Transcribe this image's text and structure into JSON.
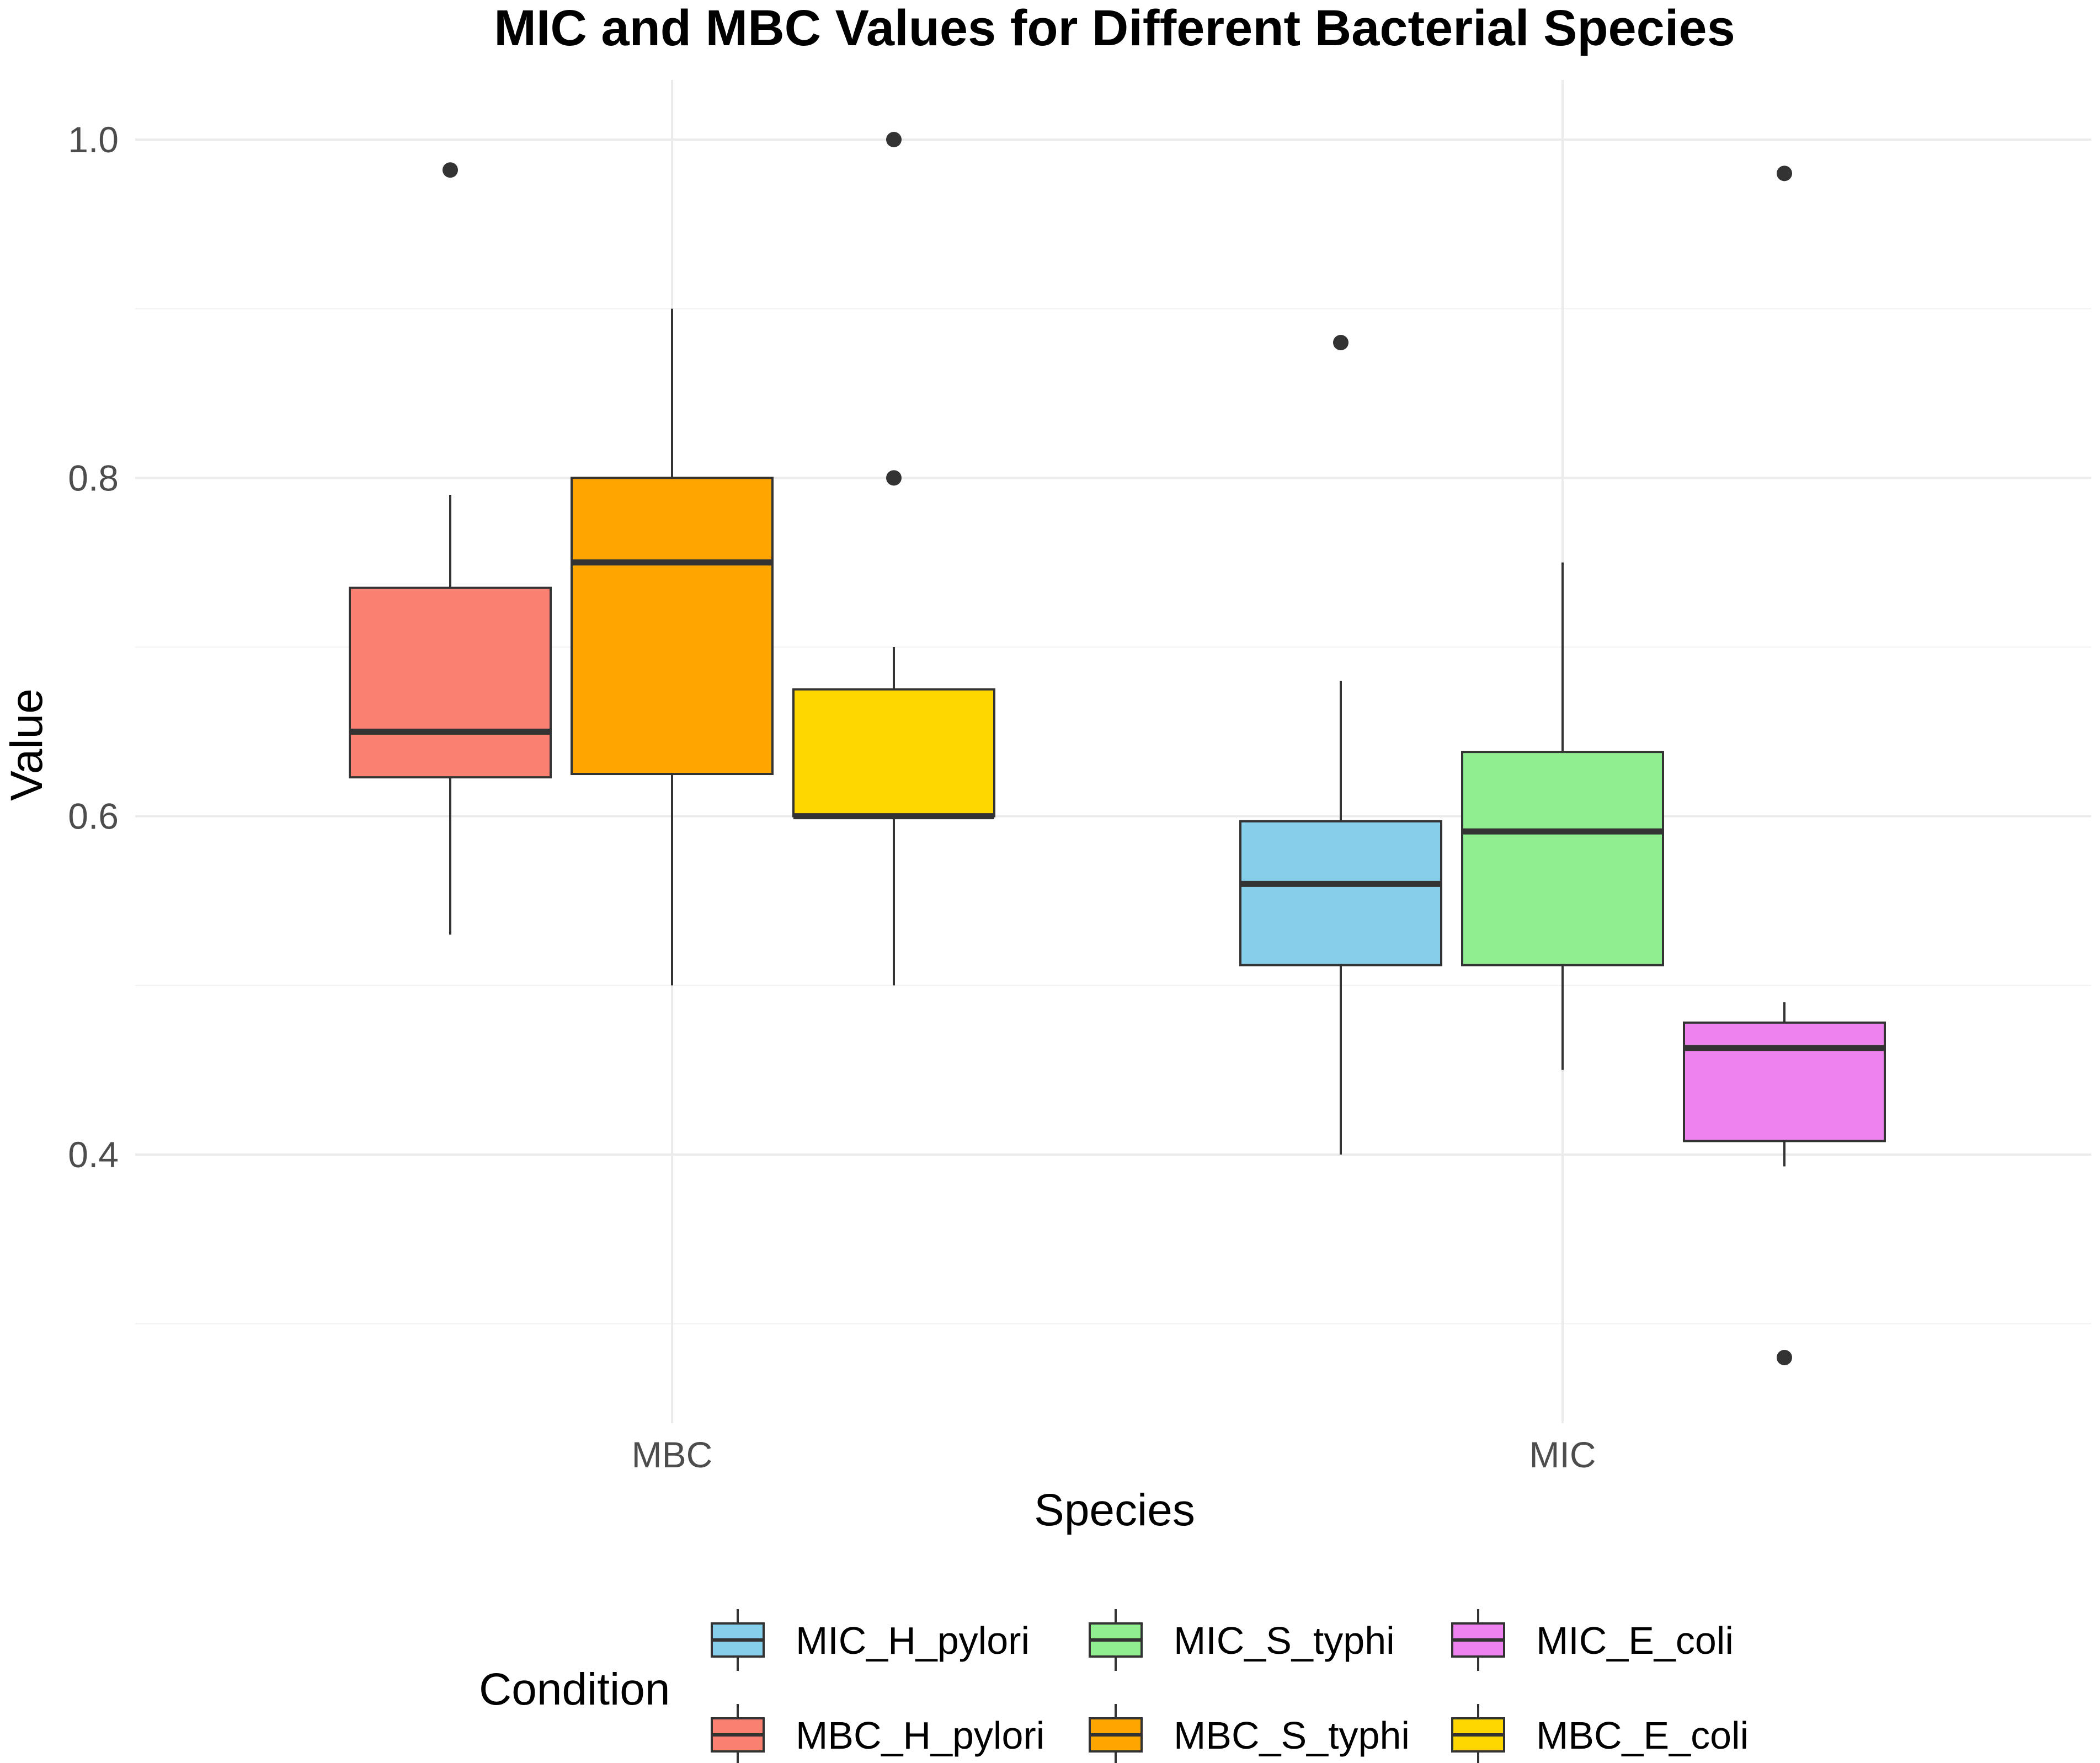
{
  "chart_data": {
    "type": "boxplot",
    "title": "MIC and MBC Values for Different Bacterial Species",
    "xlabel": "Species",
    "ylabel": "Value",
    "ylim": [
      0.25,
      1.05
    ],
    "y_ticks": [
      0.4,
      0.6,
      0.8,
      1.0
    ],
    "y_tick_labels": [
      "0.4",
      "0.6",
      "0.8",
      "1.0"
    ],
    "categories": [
      "MBC",
      "MIC"
    ],
    "grid": true,
    "legend": {
      "title": "Condition",
      "position": "bottom",
      "entries": [
        {
          "label": "MIC_H_pylori",
          "color": "#87ceeb"
        },
        {
          "label": "MIC_S_typhi",
          "color": "#90ee90"
        },
        {
          "label": "MIC_E_coli",
          "color": "#ee82ee"
        },
        {
          "label": "MBC_H_pylori",
          "color": "#fa8072"
        },
        {
          "label": "MBC_S_typhi",
          "color": "#ffa500"
        },
        {
          "label": "MBC_E_coli",
          "color": "#ffd700"
        }
      ]
    },
    "series": [
      {
        "name": "MBC_H_pylori",
        "category": "MBC",
        "slot": 0,
        "color": "#fa8072",
        "whisker_low": 0.53,
        "q1": 0.623,
        "median": 0.65,
        "q3": 0.735,
        "whisker_high": 0.79,
        "outliers": [
          0.982
        ]
      },
      {
        "name": "MBC_S_typhi",
        "category": "MBC",
        "slot": 1,
        "color": "#ffa500",
        "whisker_low": 0.5,
        "q1": 0.625,
        "median": 0.75,
        "q3": 0.8,
        "whisker_high": 0.9,
        "outliers": []
      },
      {
        "name": "MBC_E_coli",
        "category": "MBC",
        "slot": 2,
        "color": "#ffd700",
        "whisker_low": 0.5,
        "q1": 0.6,
        "median": 0.6,
        "q3": 0.675,
        "whisker_high": 0.7,
        "outliers": [
          0.8,
          1.0
        ]
      },
      {
        "name": "MIC_H_pylori",
        "category": "MIC",
        "slot": 0,
        "color": "#87ceeb",
        "whisker_low": 0.4,
        "q1": 0.512,
        "median": 0.56,
        "q3": 0.597,
        "whisker_high": 0.68,
        "outliers": [
          0.88
        ]
      },
      {
        "name": "MIC_S_typhi",
        "category": "MIC",
        "slot": 1,
        "color": "#90ee90",
        "whisker_low": 0.45,
        "q1": 0.512,
        "median": 0.591,
        "q3": 0.638,
        "whisker_high": 0.75,
        "outliers": []
      },
      {
        "name": "MIC_E_coli",
        "category": "MIC",
        "slot": 2,
        "color": "#ee82ee",
        "whisker_low": 0.393,
        "q1": 0.408,
        "median": 0.463,
        "q3": 0.478,
        "whisker_high": 0.49,
        "outliers": [
          0.98,
          0.28
        ]
      }
    ]
  }
}
